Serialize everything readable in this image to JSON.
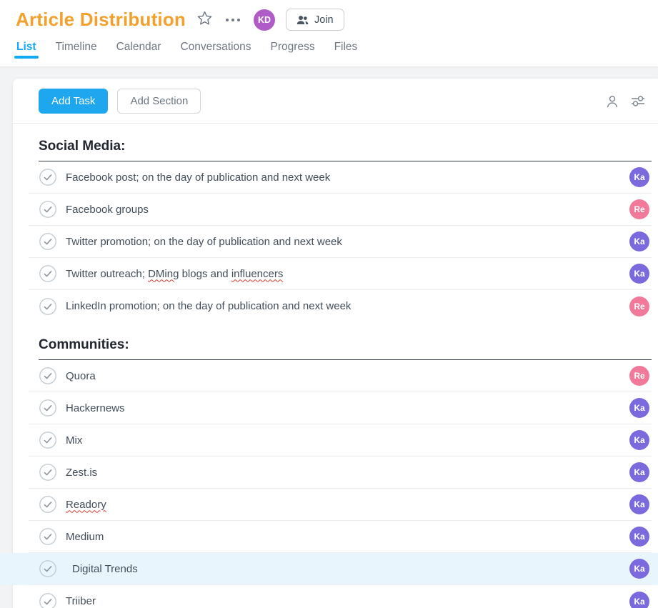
{
  "header": {
    "title": "Article Distribution",
    "user_avatar": {
      "initials": "KD",
      "color": "#b05cc8"
    },
    "join_button": {
      "label": "Join"
    }
  },
  "tabs": [
    {
      "label": "List",
      "active": true
    },
    {
      "label": "Timeline",
      "active": false
    },
    {
      "label": "Calendar",
      "active": false
    },
    {
      "label": "Conversations",
      "active": false
    },
    {
      "label": "Progress",
      "active": false
    },
    {
      "label": "Files",
      "active": false
    }
  ],
  "toolbar": {
    "add_task_label": "Add Task",
    "add_section_label": "Add Section"
  },
  "assignee_colors": {
    "Ka": "#7a6add",
    "Re": "#f17a9b"
  },
  "colors": {
    "accent_blue": "#1ea7ee",
    "title_orange": "#f3a12c",
    "selected_row_bg": "#e9f5fd",
    "squiggle_red": "#cf3a31"
  },
  "sections": [
    {
      "title": "Social Media:",
      "tasks": [
        {
          "parts": [
            {
              "text": "Facebook post; on the day of publication and next week"
            }
          ],
          "assignee": "Ka",
          "chevron": false
        },
        {
          "parts": [
            {
              "text": "Facebook groups"
            }
          ],
          "assignee": "Re",
          "chevron": true
        },
        {
          "parts": [
            {
              "text": "Twitter promotion; on the day of publication and next week"
            }
          ],
          "assignee": "Ka",
          "chevron": false
        },
        {
          "parts": [
            {
              "text": "Twitter outreach; "
            },
            {
              "text": "DMing",
              "misspelled": true
            },
            {
              "text": " blogs and "
            },
            {
              "text": "influencers",
              "misspelled": true
            }
          ],
          "assignee": "Ka",
          "chevron": true
        },
        {
          "parts": [
            {
              "text": "LinkedIn promotion; on the day of publication and next week"
            }
          ],
          "assignee": "Re",
          "chevron": true
        }
      ]
    },
    {
      "title": "Communities:",
      "tasks": [
        {
          "parts": [
            {
              "text": "Quora"
            }
          ],
          "assignee": "Re",
          "chevron": false
        },
        {
          "parts": [
            {
              "text": "Hackernews"
            }
          ],
          "assignee": "Ka",
          "chevron": false
        },
        {
          "parts": [
            {
              "text": "Mix"
            }
          ],
          "assignee": "Ka",
          "chevron": false
        },
        {
          "parts": [
            {
              "text": "Zest.is"
            }
          ],
          "assignee": "Ka",
          "chevron": true
        },
        {
          "parts": [
            {
              "text": "Readory",
              "misspelled": true
            }
          ],
          "assignee": "Ka",
          "chevron": false
        },
        {
          "parts": [
            {
              "text": "Medium"
            }
          ],
          "assignee": "Ka",
          "chevron": false
        },
        {
          "parts": [
            {
              "text": "Digital Trends"
            }
          ],
          "assignee": "Ka",
          "chevron": false,
          "selected": true
        },
        {
          "parts": [
            {
              "text": "Triiber"
            }
          ],
          "assignee": "Ka",
          "chevron": false
        }
      ]
    }
  ]
}
